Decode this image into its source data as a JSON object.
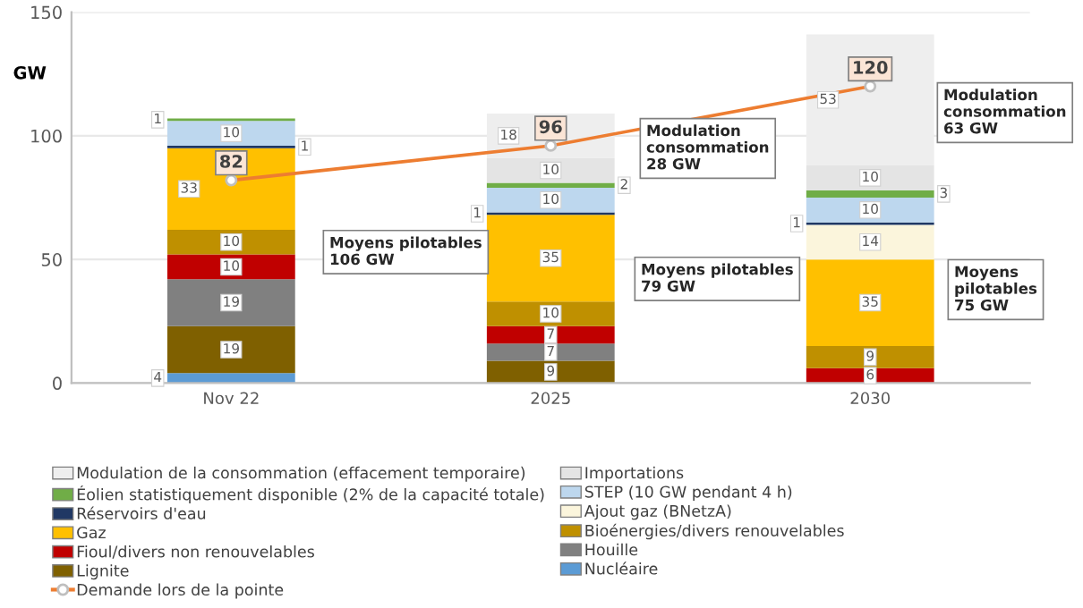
{
  "chart_data": {
    "type": "bar",
    "stacked": true,
    "ylabel": "GW",
    "categories": [
      "Nov 22",
      "2025",
      "2030"
    ],
    "series": [
      {
        "name": "Nucléaire",
        "color": "#5b9bd5",
        "values": [
          4,
          null,
          null
        ]
      },
      {
        "name": "Lignite",
        "color": "#7f6000",
        "values": [
          19,
          9,
          null
        ]
      },
      {
        "name": "Houille",
        "color": "#808080",
        "values": [
          19,
          7,
          null
        ]
      },
      {
        "name": "Fioul/divers non renouvelables",
        "color": "#c00000",
        "values": [
          10,
          7,
          6
        ]
      },
      {
        "name": "Bioénergies/divers renouvelables",
        "color": "#bf9000",
        "values": [
          10,
          10,
          9
        ]
      },
      {
        "name": "Gaz",
        "color": "#ffc000",
        "values": [
          33,
          35,
          35
        ]
      },
      {
        "name": "Ajout gaz (BNetzA)",
        "color": "#fbf5dc",
        "values": [
          null,
          null,
          14
        ]
      },
      {
        "name": "Réservoirs d'eau",
        "color": "#203864",
        "values": [
          1,
          1,
          1
        ]
      },
      {
        "name": "STEP (10 GW pendant 4 h)",
        "color": "#bdd7ee",
        "values": [
          10,
          10,
          10
        ]
      },
      {
        "name": "Éolien statistiquement disponible (2% de la capacité totale)",
        "color": "#70ad47",
        "values": [
          1,
          2,
          3
        ]
      },
      {
        "name": "Importations",
        "color": "#e4e4e4",
        "values": [
          null,
          10,
          10
        ]
      },
      {
        "name": "Modulation de la consommation (effacement temporaire)",
        "color": "#eeeeee",
        "values": [
          null,
          18,
          53
        ]
      },
      {
        "name": "Demande lors de la pointe",
        "type": "line",
        "color": "#ed7d31",
        "values": [
          82,
          96,
          120
        ]
      }
    ],
    "data_labels": true,
    "ylim": [
      0,
      150
    ],
    "yticks": [
      0,
      50,
      100,
      150
    ],
    "grid": "y",
    "legend": "bottom",
    "marker": "circle",
    "annotations": [
      "Moyens pilotables\n106 GW",
      "Moyens pilotables\n79 GW",
      "Modulation\nconsommation\n28 GW",
      "Moyens\npilotables\n75 GW",
      "Modulation\nconsommation\n63 GW"
    ]
  }
}
